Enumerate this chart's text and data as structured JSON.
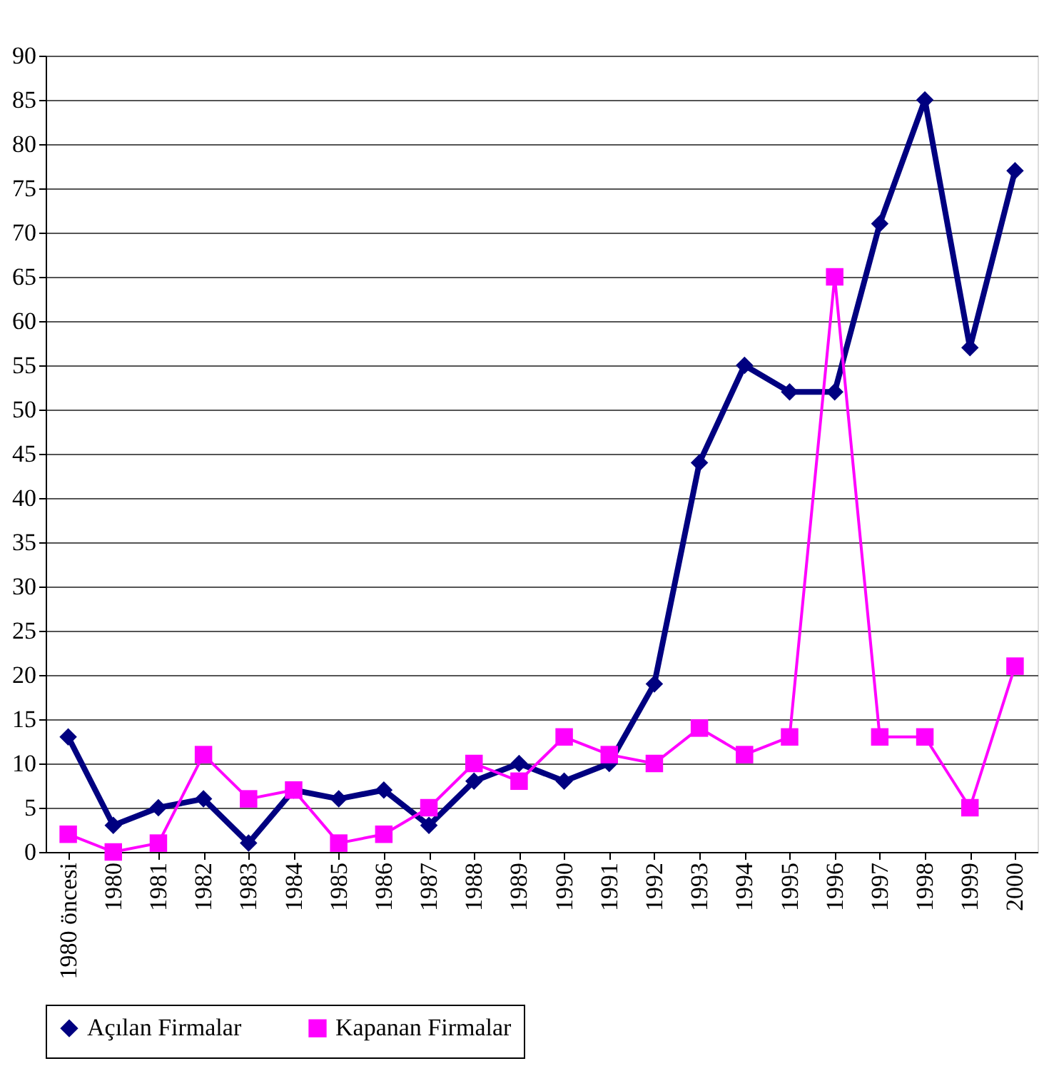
{
  "chart_data": {
    "type": "line",
    "categories": [
      "1980 öncesi",
      "1980",
      "1981",
      "1982",
      "1983",
      "1984",
      "1985",
      "1986",
      "1987",
      "1988",
      "1989",
      "1990",
      "1991",
      "1992",
      "1993",
      "1994",
      "1995",
      "1996",
      "1997",
      "1998",
      "1999",
      "2000"
    ],
    "series": [
      {
        "name": "Açılan Firmalar",
        "color": "#000080",
        "marker": "diamond",
        "values": [
          13,
          3,
          5,
          6,
          1,
          7,
          6,
          7,
          3,
          8,
          10,
          8,
          10,
          19,
          44,
          55,
          52,
          52,
          71,
          85,
          57,
          77
        ]
      },
      {
        "name": "Kapanan Firmalar",
        "color": "#ff00ff",
        "marker": "square",
        "values": [
          2,
          0,
          1,
          11,
          6,
          7,
          1,
          2,
          5,
          10,
          8,
          13,
          11,
          10,
          14,
          11,
          13,
          65,
          13,
          13,
          5,
          21
        ]
      }
    ],
    "ylim": [
      0,
      90
    ],
    "yticks": [
      0,
      5,
      10,
      15,
      20,
      25,
      30,
      35,
      40,
      45,
      50,
      55,
      60,
      65,
      70,
      75,
      80,
      85,
      90
    ],
    "grid": "y",
    "legend": "bottom"
  }
}
